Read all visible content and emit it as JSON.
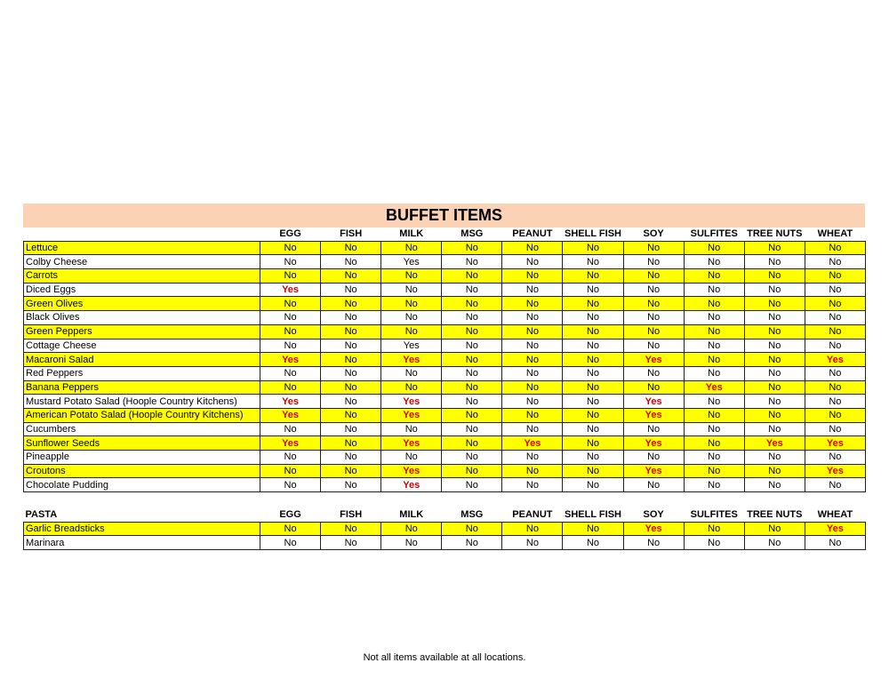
{
  "title": "BUFFET ITEMS",
  "columns": [
    "EGG",
    "FISH",
    "MILK",
    "MSG",
    "PEANUT",
    "SHELL FISH",
    "SOY",
    "SULFITES",
    "TREE NUTS",
    "WHEAT"
  ],
  "colors": {
    "highlight_row": "#ffff00",
    "banner": "#fbd3b4",
    "yes_text": "#d40000"
  },
  "buffet_rows": [
    {
      "name": "Lettuce",
      "hl": true,
      "values": [
        "No",
        "No",
        "No",
        "No",
        "No",
        "No",
        "No",
        "No",
        "No",
        "No"
      ]
    },
    {
      "name": "Colby Cheese",
      "hl": false,
      "plain": true,
      "values": [
        "No",
        "No",
        "Yes",
        "No",
        "No",
        "No",
        "No",
        "No",
        "No",
        "No"
      ]
    },
    {
      "name": "Carrots",
      "hl": true,
      "values": [
        "No",
        "No",
        "No",
        "No",
        "No",
        "No",
        "No",
        "No",
        "No",
        "No"
      ]
    },
    {
      "name": "Diced Eggs",
      "hl": false,
      "values": [
        "Yes",
        "No",
        "No",
        "No",
        "No",
        "No",
        "No",
        "No",
        "No",
        "No"
      ]
    },
    {
      "name": "Green Olives",
      "hl": true,
      "values": [
        "No",
        "No",
        "No",
        "No",
        "No",
        "No",
        "No",
        "No",
        "No",
        "No"
      ]
    },
    {
      "name": "Black Olives",
      "hl": false,
      "values": [
        "No",
        "No",
        "No",
        "No",
        "No",
        "No",
        "No",
        "No",
        "No",
        "No"
      ]
    },
    {
      "name": "Green Peppers",
      "hl": true,
      "values": [
        "No",
        "No",
        "No",
        "No",
        "No",
        "No",
        "No",
        "No",
        "No",
        "No"
      ]
    },
    {
      "name": "Cottage Cheese",
      "hl": false,
      "plain": true,
      "values": [
        "No",
        "No",
        "Yes",
        "No",
        "No",
        "No",
        "No",
        "No",
        "No",
        "No"
      ]
    },
    {
      "name": "Macaroni Salad",
      "hl": true,
      "values": [
        "Yes",
        "No",
        "Yes",
        "No",
        "No",
        "No",
        "Yes",
        "No",
        "No",
        "Yes"
      ]
    },
    {
      "name": "Red Peppers",
      "hl": false,
      "values": [
        "No",
        "No",
        "No",
        "No",
        "No",
        "No",
        "No",
        "No",
        "No",
        "No"
      ]
    },
    {
      "name": "Banana Peppers",
      "hl": true,
      "values": [
        "No",
        "No",
        "No",
        "No",
        "No",
        "No",
        "No",
        "Yes",
        "No",
        "No"
      ]
    },
    {
      "name": "Mustard Potato Salad  (Hoople Country Kitchens)",
      "hl": false,
      "values": [
        "Yes",
        "No",
        "Yes",
        "No",
        "No",
        "No",
        "Yes",
        "No",
        "No",
        "No"
      ]
    },
    {
      "name": "American Potato Salad (Hoople Country Kitchens)",
      "hl": true,
      "values": [
        "Yes",
        "No",
        "Yes",
        "No",
        "No",
        "No",
        "Yes",
        "No",
        "No",
        "No"
      ]
    },
    {
      "name": "Cucumbers",
      "hl": false,
      "values": [
        "No",
        "No",
        "No",
        "No",
        "No",
        "No",
        "No",
        "No",
        "No",
        "No"
      ]
    },
    {
      "name": "Sunflower Seeds",
      "hl": true,
      "values": [
        "Yes",
        "No",
        "Yes",
        "No",
        "Yes",
        "No",
        "Yes",
        "No",
        "Yes",
        "Yes"
      ]
    },
    {
      "name": "Pineapple",
      "hl": false,
      "values": [
        "No",
        "No",
        "No",
        "No",
        "No",
        "No",
        "No",
        "No",
        "No",
        "No"
      ]
    },
    {
      "name": "Croutons",
      "hl": true,
      "values": [
        "No",
        "No",
        "Yes",
        "No",
        "No",
        "No",
        "Yes",
        "No",
        "No",
        "Yes"
      ]
    },
    {
      "name": "Chocolate Pudding",
      "hl": false,
      "values": [
        "No",
        "No",
        "Yes",
        "No",
        "No",
        "No",
        "No",
        "No",
        "No",
        "No"
      ]
    }
  ],
  "pasta_heading": "PASTA",
  "pasta_rows": [
    {
      "name": "Garlic Breadsticks",
      "hl": true,
      "values": [
        "No",
        "No",
        "No",
        "No",
        "No",
        "No",
        "Yes",
        "No",
        "No",
        "Yes"
      ]
    },
    {
      "name": "Marinara",
      "hl": false,
      "values": [
        "No",
        "No",
        "No",
        "No",
        "No",
        "No",
        "No",
        "No",
        "No",
        "No"
      ]
    }
  ],
  "footer": "Not all items available at all locations."
}
